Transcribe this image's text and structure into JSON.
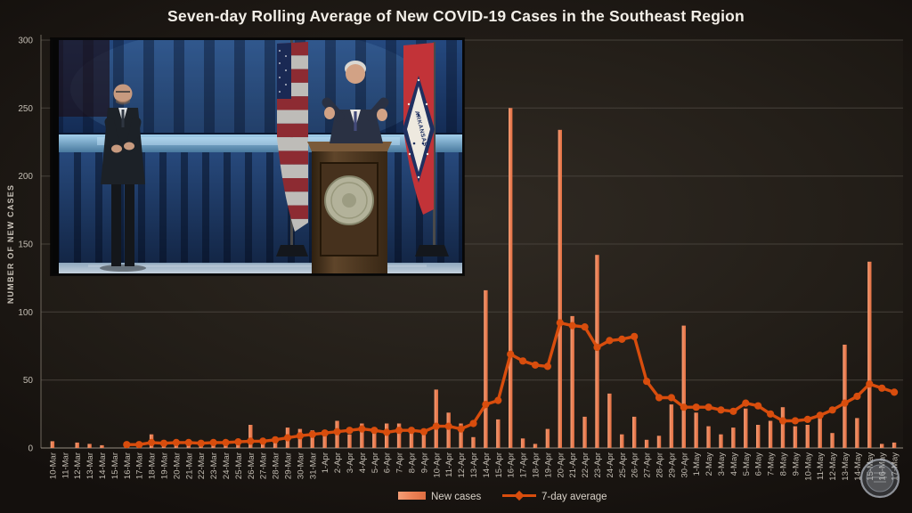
{
  "title": "Seven-day Rolling Average of New COVID-19 Cases in the Southeast Region",
  "legend": {
    "new_cases_label": "New cases",
    "average_label": "7-day average"
  },
  "colors": {
    "bar": "#EC8257",
    "line": "#D84D0D",
    "title_text": "#F3EFE8",
    "axis_text": "#C2BCB2",
    "grid": "#46413A"
  },
  "watermark": {
    "description": "circular seal logo, bottom right over axis labels"
  },
  "inset": {
    "flag_text": "ARKANSAS"
  },
  "chart_data": {
    "type": "bar",
    "title": "Seven-day Rolling Average of New COVID-19 Cases in the Southeast Region",
    "xlabel": "",
    "ylabel": "NUMBER OF NEW CASES",
    "ylim": [
      0,
      300
    ],
    "yticks": [
      0,
      50,
      100,
      150,
      200,
      250,
      300
    ],
    "grid": true,
    "legend_position": "bottom",
    "categories": [
      "10-Mar",
      "11-Mar",
      "12-Mar",
      "13-Mar",
      "14-Mar",
      "15-Mar",
      "16-Mar",
      "17-Mar",
      "18-Mar",
      "19-Mar",
      "20-Mar",
      "21-Mar",
      "22-Mar",
      "23-Mar",
      "24-Mar",
      "25-Mar",
      "26-Mar",
      "27-Mar",
      "28-Mar",
      "29-Mar",
      "30-Mar",
      "31-Mar",
      "1-Apr",
      "2-Apr",
      "3-Apr",
      "4-Apr",
      "5-Apr",
      "6-Apr",
      "7-Apr",
      "8-Apr",
      "9-Apr",
      "10-Apr",
      "11-Apr",
      "12-Apr",
      "13-Apr",
      "14-Apr",
      "15-Apr",
      "16-Apr",
      "17-Apr",
      "18-Apr",
      "19-Apr",
      "20-Apr",
      "21-Apr",
      "22-Apr",
      "23-Apr",
      "24-Apr",
      "25-Apr",
      "26-Apr",
      "27-Apr",
      "28-Apr",
      "29-Apr",
      "30-Apr",
      "1-May",
      "2-May",
      "3-May",
      "4-May",
      "5-May",
      "6-May",
      "7-May",
      "8-May",
      "9-May",
      "10-May",
      "11-May",
      "12-May",
      "13-May",
      "14-May",
      "15-May",
      "16-May",
      "17-May"
    ],
    "series": [
      {
        "name": "New cases",
        "type": "bar",
        "values": [
          5,
          0,
          4,
          3,
          2,
          0,
          2,
          2,
          10,
          3,
          4,
          5,
          3,
          5,
          4,
          5,
          17,
          4,
          6,
          15,
          14,
          13,
          11,
          20,
          10,
          18,
          11,
          18,
          18,
          12,
          11,
          43,
          26,
          18,
          8,
          116,
          21,
          250,
          7,
          3,
          14,
          234,
          97,
          23,
          142,
          40,
          10,
          23,
          6,
          9,
          32,
          90,
          26,
          16,
          10,
          15,
          29,
          17,
          20,
          30,
          16,
          17,
          25,
          11,
          76,
          22,
          137,
          3,
          4
        ]
      },
      {
        "name": "7-day average",
        "type": "line",
        "values": [
          null,
          null,
          null,
          null,
          null,
          null,
          2.5,
          2.5,
          4,
          3.5,
          4,
          4,
          3.5,
          4,
          4,
          4.5,
          5,
          5,
          6,
          7.5,
          9,
          10,
          11,
          12,
          13,
          14,
          13,
          11.5,
          13,
          13,
          12,
          16,
          16,
          14,
          18,
          32,
          35,
          69,
          64,
          61,
          60,
          92,
          90,
          89,
          74,
          79,
          80,
          82,
          49,
          37,
          37,
          30,
          30,
          30,
          28,
          27,
          33,
          31,
          25,
          20,
          20,
          21,
          24,
          28,
          33,
          38,
          47,
          44,
          41
        ]
      }
    ]
  }
}
